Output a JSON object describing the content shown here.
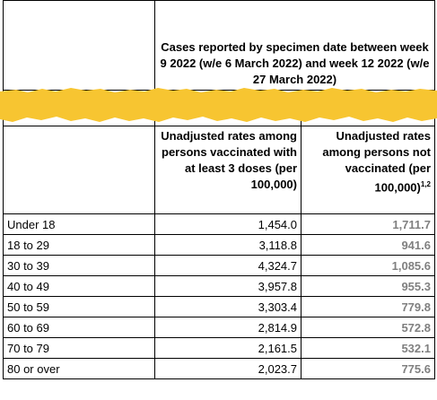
{
  "caption": "Cases reported by specimen date between week 9 2022 (w/e 6 March 2022) and week 12 2022 (w/e 27 March 2022)",
  "columns": {
    "vaccinated": "Unadjusted rates among persons vaccinated with at least 3 doses (per 100,000)",
    "not_vaccinated": "Unadjusted rates among persons not vaccinated (per 100,000)",
    "not_vaccinated_note": "1,2"
  },
  "rows": [
    {
      "age": "Under 18",
      "vaccinated": "1,454.0",
      "not_vaccinated": "1,711.7"
    },
    {
      "age": "18 to 29",
      "vaccinated": "3,118.8",
      "not_vaccinated": "941.6"
    },
    {
      "age": "30 to 39",
      "vaccinated": "4,324.7",
      "not_vaccinated": "1,085.6"
    },
    {
      "age": "40 to 49",
      "vaccinated": "3,957.8",
      "not_vaccinated": "955.3"
    },
    {
      "age": "50 to 59",
      "vaccinated": "3,303.4",
      "not_vaccinated": "779.8"
    },
    {
      "age": "60 to 69",
      "vaccinated": "2,814.9",
      "not_vaccinated": "572.8"
    },
    {
      "age": "70 to 79",
      "vaccinated": "2,161.5",
      "not_vaccinated": "532.1"
    },
    {
      "age": "80 or over",
      "vaccinated": "2,023.7",
      "not_vaccinated": "775.6"
    }
  ],
  "colors": {
    "redaction": "#f7c531",
    "highlight_text": "#808080"
  }
}
